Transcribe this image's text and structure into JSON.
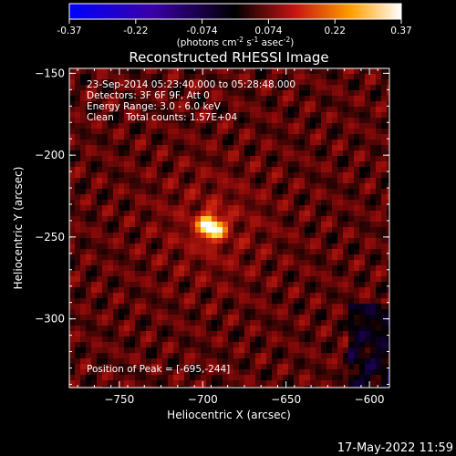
{
  "chart_data": {
    "type": "heatmap",
    "title": "Reconstructed RHESSI Image",
    "xlabel": "Heliocentric X (arcsec)",
    "ylabel": "Heliocentric Y (arcsec)",
    "xlim": [
      -780,
      -588
    ],
    "ylim": [
      -342,
      -147
    ],
    "xticks": [
      -750,
      -700,
      -650,
      -600
    ],
    "yticks": [
      -150,
      -200,
      -250,
      -300
    ],
    "colorbar": {
      "range": [
        -0.37,
        0.37
      ],
      "ticks": [
        "-0.37",
        "-0.22",
        "-0.074",
        "0.074",
        "0.22",
        "0.37"
      ],
      "label_text": "(photons cm",
      "label_exp1": "-2",
      "label_mid1": " s",
      "label_exp2": "-1",
      "label_mid2": " asec",
      "label_exp3": "-2",
      "label_end": ")"
    },
    "annotations": {
      "time_range": "23-Sep-2014 05:23:40.000 to 05:28:48.000",
      "detectors": "Detectors: 3F 6F 9F, Att 0",
      "energy": "Energy Range: 3.0 - 6.0 keV",
      "clean": "Clean    Total counts: 1.57E+04",
      "peak": "Position of Peak = [-695,-244]"
    },
    "peak": {
      "x": -695,
      "y": -244,
      "value": 0.37
    },
    "grid": false
  },
  "timestamp": "17-May-2022 11:59"
}
